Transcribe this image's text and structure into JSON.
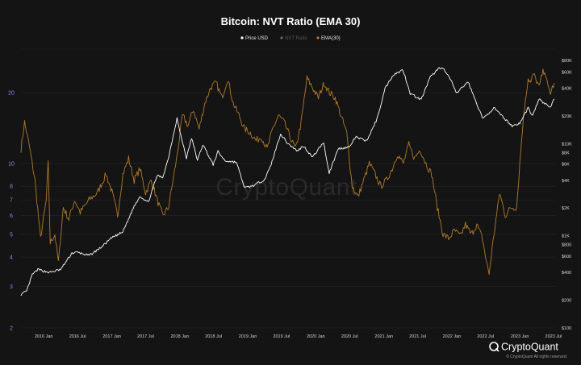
{
  "chart_data": {
    "type": "line",
    "title": "Bitcoin: NVT Ratio (EMA 30)",
    "x_range": [
      "2015-09",
      "2023-07"
    ],
    "y_left": {
      "scale": "log",
      "range": [
        2,
        30
      ],
      "ticks": [
        {
          "value": 2,
          "label": "2"
        },
        {
          "value": 3,
          "label": "3"
        },
        {
          "value": 4,
          "label": "4"
        },
        {
          "value": 5,
          "label": "5"
        },
        {
          "value": 6,
          "label": "6"
        },
        {
          "value": 7,
          "label": "7"
        },
        {
          "value": 8,
          "label": "8"
        },
        {
          "value": 10,
          "label": "10"
        },
        {
          "value": 20,
          "label": "20"
        }
      ]
    },
    "y_right": {
      "scale": "log",
      "range": [
        100,
        100000
      ],
      "ticks": [
        {
          "value": 100,
          "label": "$100"
        },
        {
          "value": 200,
          "label": "$200"
        },
        {
          "value": 400,
          "label": "$400"
        },
        {
          "value": 600,
          "label": "$600"
        },
        {
          "value": 800,
          "label": "$800"
        },
        {
          "value": 1000,
          "label": "$1K"
        },
        {
          "value": 2000,
          "label": "$2K"
        },
        {
          "value": 4000,
          "label": "$4K"
        },
        {
          "value": 6000,
          "label": "$6K"
        },
        {
          "value": 8000,
          "label": "$8K"
        },
        {
          "value": 10000,
          "label": "$10K"
        },
        {
          "value": 20000,
          "label": "$20K"
        },
        {
          "value": 40000,
          "label": "$40K"
        },
        {
          "value": 60000,
          "label": "$60K"
        },
        {
          "value": 80000,
          "label": "$80K"
        }
      ]
    },
    "x_ticks": [
      {
        "date": "2016-01",
        "label": "2016 Jan"
      },
      {
        "date": "2016-07",
        "label": "2016 Jul"
      },
      {
        "date": "2017-01",
        "label": "2017 Jan"
      },
      {
        "date": "2017-07",
        "label": "2017 Jul"
      },
      {
        "date": "2018-01",
        "label": "2018 Jan"
      },
      {
        "date": "2018-07",
        "label": "2018 Jul"
      },
      {
        "date": "2019-01",
        "label": "2019 Jan"
      },
      {
        "date": "2019-07",
        "label": "2019 Jul"
      },
      {
        "date": "2020-01",
        "label": "2020 Jan"
      },
      {
        "date": "2020-07",
        "label": "2020 Jul"
      },
      {
        "date": "2021-01",
        "label": "2021 Jan"
      },
      {
        "date": "2021-07",
        "label": "2021 Jul"
      },
      {
        "date": "2022-01",
        "label": "2022 Jan"
      },
      {
        "date": "2022-07",
        "label": "2022 Jul"
      },
      {
        "date": "2023-01",
        "label": "2023 Jan"
      },
      {
        "date": "2023-07",
        "label": "2023 Jul"
      }
    ],
    "legend": {
      "placement": "top-center",
      "entries": [
        {
          "name": "Price USD",
          "color": "#ffffff",
          "active": true
        },
        {
          "name": "NVT Ratio",
          "color": "#666666",
          "active": false
        },
        {
          "name": "EMA(30)",
          "color": "#b07a2a",
          "active": true
        }
      ]
    },
    "grid": {
      "horizontal": true,
      "vertical": false
    },
    "series": [
      {
        "name": "Price USD",
        "color": "#ffffff",
        "axis": "right",
        "points": [
          [
            "2015-09-01",
            230
          ],
          [
            "2015-10-01",
            250
          ],
          [
            "2015-11-01",
            380
          ],
          [
            "2015-12-01",
            430
          ],
          [
            "2016-02-01",
            400
          ],
          [
            "2016-04-01",
            430
          ],
          [
            "2016-06-01",
            650
          ],
          [
            "2016-07-01",
            660
          ],
          [
            "2016-09-01",
            610
          ],
          [
            "2016-11-01",
            740
          ],
          [
            "2017-01-01",
            950
          ],
          [
            "2017-03-01",
            1100
          ],
          [
            "2017-05-01",
            2100
          ],
          [
            "2017-06-01",
            2700
          ],
          [
            "2017-07-15",
            2300
          ],
          [
            "2017-09-01",
            4500
          ],
          [
            "2017-10-01",
            4300
          ],
          [
            "2017-11-01",
            7000
          ],
          [
            "2017-12-17",
            19000
          ],
          [
            "2018-01-01",
            13500
          ],
          [
            "2018-02-06",
            7000
          ],
          [
            "2018-03-05",
            11500
          ],
          [
            "2018-04-06",
            6600
          ],
          [
            "2018-05-05",
            9800
          ],
          [
            "2018-06-29",
            5900
          ],
          [
            "2018-07-25",
            8200
          ],
          [
            "2018-09-01",
            6500
          ],
          [
            "2018-11-01",
            6300
          ],
          [
            "2018-12-15",
            3300
          ],
          [
            "2019-02-01",
            3500
          ],
          [
            "2019-04-01",
            4100
          ],
          [
            "2019-05-01",
            5500
          ],
          [
            "2019-06-26",
            12800
          ],
          [
            "2019-08-01",
            10200
          ],
          [
            "2019-09-25",
            8300
          ],
          [
            "2019-10-26",
            9500
          ],
          [
            "2019-12-15",
            7100
          ],
          [
            "2020-02-12",
            10400
          ],
          [
            "2020-03-13",
            4800
          ],
          [
            "2020-05-01",
            8800
          ],
          [
            "2020-07-01",
            9200
          ],
          [
            "2020-08-01",
            11800
          ],
          [
            "2020-10-01",
            10700
          ],
          [
            "2020-11-25",
            18500
          ],
          [
            "2021-01-08",
            40000
          ],
          [
            "2021-02-20",
            56000
          ],
          [
            "2021-04-14",
            63000
          ],
          [
            "2021-05-23",
            35000
          ],
          [
            "2021-07-20",
            30000
          ],
          [
            "2021-09-06",
            52000
          ],
          [
            "2021-10-20",
            65000
          ],
          [
            "2021-11-10",
            68000
          ],
          [
            "2022-01-01",
            47000
          ],
          [
            "2022-01-24",
            35000
          ],
          [
            "2022-03-29",
            47000
          ],
          [
            "2022-05-12",
            28000
          ],
          [
            "2022-06-18",
            18500
          ],
          [
            "2022-08-14",
            24500
          ],
          [
            "2022-10-01",
            19500
          ],
          [
            "2022-11-21",
            15600
          ],
          [
            "2023-01-01",
            16600
          ],
          [
            "2023-02-15",
            24500
          ],
          [
            "2023-03-10",
            20000
          ],
          [
            "2023-04-14",
            30500
          ],
          [
            "2023-05-15",
            27000
          ],
          [
            "2023-06-15",
            25000
          ],
          [
            "2023-07-05",
            30500
          ]
        ]
      },
      {
        "name": "EMA(30)",
        "color": "#b07a2a",
        "axis": "left",
        "points": [
          [
            "2015-09-01",
            11.5
          ],
          [
            "2015-09-20",
            15.0
          ],
          [
            "2015-10-15",
            12.0
          ],
          [
            "2015-11-15",
            8.5
          ],
          [
            "2015-12-15",
            4.8
          ],
          [
            "2016-01-15",
            7.0
          ],
          [
            "2016-01-25",
            10.0
          ],
          [
            "2016-02-05",
            4.6
          ],
          [
            "2016-03-01",
            5.0
          ],
          [
            "2016-03-20",
            3.8
          ],
          [
            "2016-04-15",
            6.5
          ],
          [
            "2016-05-15",
            5.8
          ],
          [
            "2016-06-15",
            7.0
          ],
          [
            "2016-07-15",
            6.2
          ],
          [
            "2016-09-01",
            7.0
          ],
          [
            "2016-10-15",
            7.5
          ],
          [
            "2016-12-01",
            9.0
          ],
          [
            "2017-01-01",
            7.6
          ],
          [
            "2017-02-01",
            6.0
          ],
          [
            "2017-03-01",
            9.0
          ],
          [
            "2017-04-01",
            10.5
          ],
          [
            "2017-05-01",
            8.5
          ],
          [
            "2017-06-01",
            9.5
          ],
          [
            "2017-07-01",
            7.5
          ],
          [
            "2017-08-01",
            8.5
          ],
          [
            "2017-09-01",
            7.0
          ],
          [
            "2017-10-01",
            6.0
          ],
          [
            "2017-11-01",
            6.5
          ],
          [
            "2017-12-15",
            10.5
          ],
          [
            "2018-01-15",
            16.0
          ],
          [
            "2018-02-15",
            14.5
          ],
          [
            "2018-03-15",
            17.0
          ],
          [
            "2018-04-15",
            14.0
          ],
          [
            "2018-05-15",
            18.0
          ],
          [
            "2018-06-15",
            21.0
          ],
          [
            "2018-07-15",
            22.0
          ],
          [
            "2018-08-15",
            19.0
          ],
          [
            "2018-09-15",
            23.0
          ],
          [
            "2018-10-15",
            18.0
          ],
          [
            "2018-11-15",
            16.0
          ],
          [
            "2018-12-15",
            14.0
          ],
          [
            "2019-01-15",
            13.5
          ],
          [
            "2019-02-15",
            12.5
          ],
          [
            "2019-03-15",
            13.0
          ],
          [
            "2019-04-15",
            11.5
          ],
          [
            "2019-05-15",
            14.0
          ],
          [
            "2019-06-15",
            16.0
          ],
          [
            "2019-07-15",
            15.0
          ],
          [
            "2019-08-15",
            13.0
          ],
          [
            "2019-09-15",
            11.5
          ],
          [
            "2019-10-15",
            15.0
          ],
          [
            "2019-11-15",
            23.0
          ],
          [
            "2019-12-15",
            21.0
          ],
          [
            "2020-01-15",
            19.0
          ],
          [
            "2020-02-15",
            22.0
          ],
          [
            "2020-03-15",
            20.0
          ],
          [
            "2020-04-15",
            19.0
          ],
          [
            "2020-05-15",
            16.0
          ],
          [
            "2020-06-15",
            13.5
          ],
          [
            "2020-07-15",
            8.0
          ],
          [
            "2020-08-15",
            7.2
          ],
          [
            "2020-09-15",
            8.5
          ],
          [
            "2020-10-15",
            10.0
          ],
          [
            "2020-11-15",
            9.0
          ],
          [
            "2020-12-15",
            8.0
          ],
          [
            "2021-01-15",
            8.5
          ],
          [
            "2021-02-15",
            9.5
          ],
          [
            "2021-03-15",
            11.0
          ],
          [
            "2021-04-15",
            10.0
          ],
          [
            "2021-05-15",
            12.0
          ],
          [
            "2021-06-15",
            10.5
          ],
          [
            "2021-07-15",
            11.5
          ],
          [
            "2021-08-15",
            10.0
          ],
          [
            "2021-09-15",
            9.0
          ],
          [
            "2021-10-15",
            6.5
          ],
          [
            "2021-11-15",
            5.0
          ],
          [
            "2021-12-15",
            4.8
          ],
          [
            "2022-01-15",
            5.2
          ],
          [
            "2022-02-15",
            4.9
          ],
          [
            "2022-03-15",
            5.5
          ],
          [
            "2022-04-15",
            5.0
          ],
          [
            "2022-05-15",
            5.5
          ],
          [
            "2022-06-15",
            4.8
          ],
          [
            "2022-07-01",
            4.0
          ],
          [
            "2022-07-20",
            3.4
          ],
          [
            "2022-08-15",
            5.0
          ],
          [
            "2022-09-15",
            7.5
          ],
          [
            "2022-10-15",
            6.0
          ],
          [
            "2022-11-15",
            6.5
          ],
          [
            "2022-12-15",
            6.5
          ],
          [
            "2023-01-01",
            10.0
          ],
          [
            "2023-01-15",
            14.0
          ],
          [
            "2023-02-01",
            19.0
          ],
          [
            "2023-02-15",
            23.0
          ],
          [
            "2023-03-01",
            22.0
          ],
          [
            "2023-03-15",
            24.0
          ],
          [
            "2023-04-01",
            22.5
          ],
          [
            "2023-04-15",
            21.0
          ],
          [
            "2023-05-01",
            24.0
          ],
          [
            "2023-05-15",
            25.0
          ],
          [
            "2023-06-01",
            21.0
          ],
          [
            "2023-06-15",
            20.0
          ],
          [
            "2023-07-05",
            22.0
          ]
        ]
      }
    ],
    "watermark": "CryptoQuant"
  },
  "footer": {
    "brand": "CryptoQuant",
    "copyright": "© CryptoQuant All rights reserved."
  }
}
